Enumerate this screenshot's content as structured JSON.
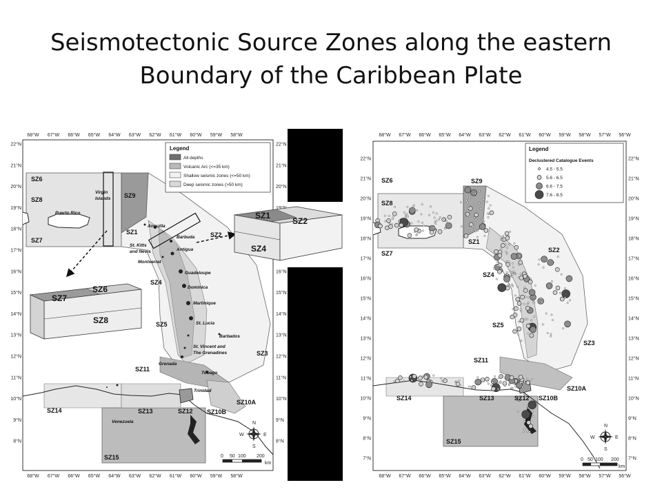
{
  "title": {
    "line1": "Seismotectonic Source Zones along the eastern",
    "line2": "Boundary of the Caribbean Plate"
  },
  "left_map": {
    "lon_ticks": [
      "68°W",
      "67°W",
      "66°W",
      "65°W",
      "64°W",
      "63°W",
      "62°W",
      "61°W",
      "60°W",
      "59°W",
      "58°W"
    ],
    "lat_ticks": [
      "22°N",
      "21°N",
      "20°N",
      "19°N",
      "18°N",
      "17°N",
      "16°N",
      "15°N",
      "14°N",
      "13°N",
      "12°N",
      "11°N",
      "10°N",
      "9°N",
      "8°N"
    ],
    "legend": {
      "title": "Legend",
      "items": [
        {
          "label": "All depths",
          "color": "#6e6e6e"
        },
        {
          "label": "Volcanic Arc (<=35 km)",
          "color": "#b9b9b9"
        },
        {
          "label": "Shallow seismic zones (<=50 km)",
          "color": "#f2f2f2"
        },
        {
          "label": "Deep seismic zones (>50 km)",
          "color": "#d9d9d9"
        }
      ]
    },
    "zone_labels": [
      "SZ6",
      "SZ8",
      "SZ7",
      "SZ9",
      "SZ1",
      "SZ2",
      "SZ4",
      "SZ5",
      "SZ3",
      "SZ11",
      "SZ14",
      "SZ13",
      "SZ12",
      "SZ10B",
      "SZ10A",
      "SZ15"
    ],
    "islands": [
      "Puerto Rico",
      "Virgin",
      "Islands",
      "Anguilla",
      "Barbuda",
      "St. Kitts",
      "and Nevis",
      "Antigua",
      "Montserrat",
      "Guadeloupe",
      "Dominica",
      "Martinique",
      "St. Lucia",
      "Barbados",
      "St. Vincent and",
      "The Grenadines",
      "Grenada",
      "Tobago",
      "Trinidad",
      "Venezuela"
    ],
    "block_a": {
      "top_left": "SZ7",
      "top_right": "SZ6",
      "front": "SZ8"
    },
    "block_b": {
      "top_left": "SZ1",
      "top_right": "SZ2",
      "front": "SZ4"
    },
    "compass": {
      "n": "N",
      "e": "E",
      "s": "S",
      "w": "W"
    },
    "scale": {
      "labels": [
        "0",
        "50",
        "100",
        "200"
      ],
      "unit": "km"
    }
  },
  "right_map": {
    "lon_ticks": [
      "68°W",
      "67°W",
      "66°W",
      "65°W",
      "64°W",
      "63°W",
      "62°W",
      "61°W",
      "60°W",
      "59°W",
      "58°W",
      "57°W",
      "56°W"
    ],
    "lat_ticks": [
      "22°N",
      "21°N",
      "20°N",
      "19°N",
      "18°N",
      "17°N",
      "16°N",
      "15°N",
      "14°N",
      "13°N",
      "12°N",
      "11°N",
      "10°N",
      "9°N",
      "8°N",
      "7°N"
    ],
    "legend": {
      "title": "Legend",
      "subtitle": "Declustered Catalogue Events",
      "items": [
        "4.5 - 5.5",
        "5.6 - 6.5",
        "6.6 - 7.5",
        "7.6 - 8.5"
      ]
    },
    "zone_labels": [
      "SZ6",
      "SZ8",
      "SZ7",
      "SZ9",
      "SZ1",
      "SZ4",
      "SZ2",
      "SZ5",
      "SZ3",
      "SZ11",
      "SZ14",
      "SZ13",
      "SZ12",
      "SZ10B",
      "SZ10A",
      "SZ15"
    ],
    "compass": {
      "n": "N",
      "e": "E",
      "s": "S",
      "w": "W"
    },
    "scale": {
      "labels": [
        "0",
        "50",
        "100",
        "200"
      ],
      "unit": "km"
    }
  },
  "colors": {
    "all_depths": "#6e6e6e",
    "volcanic_arc": "#b9b9b9",
    "shallow": "#f2f2f2",
    "deep": "#d9d9d9",
    "sea": "#ffffff"
  }
}
